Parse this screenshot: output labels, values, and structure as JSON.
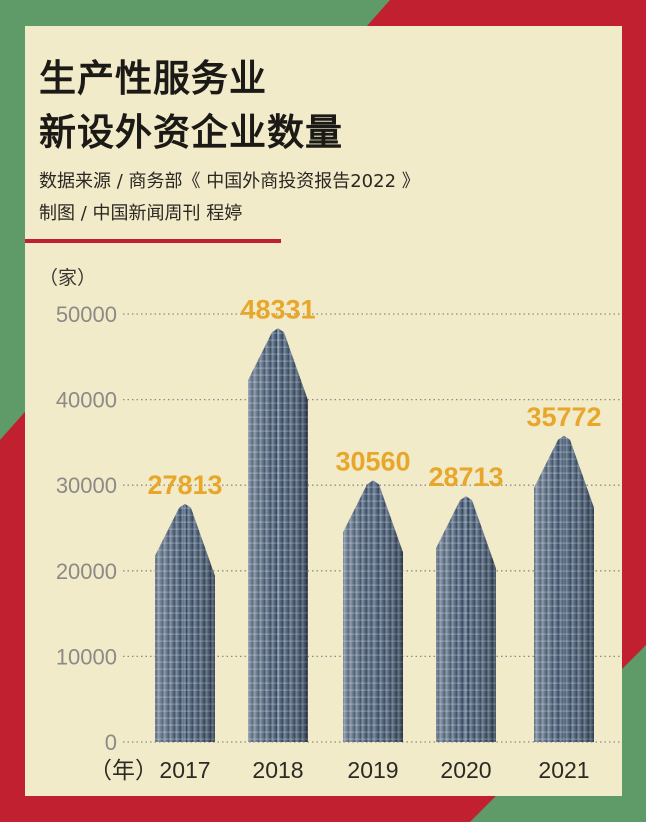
{
  "colors": {
    "green": "#5e9b69",
    "red": "#c0202f",
    "panel": "#f1ebc9",
    "value": "#e8a72a"
  },
  "title_line1": "生产性服务业",
  "title_line2": "新设外资企业数量",
  "source": "数据来源 / 商务部《 中国外商投资报告2022 》",
  "credit": "制图 / 中国新闻周刊 程婷",
  "chart_data": {
    "type": "bar",
    "title": "生产性服务业新设外资企业数量",
    "categories": [
      "2017",
      "2018",
      "2019",
      "2020",
      "2021"
    ],
    "values": [
      27813,
      48331,
      30560,
      28713,
      35772
    ],
    "ylabel": "（家）",
    "xlabel": "（年）",
    "ylim": [
      0,
      50000
    ],
    "yticks": [
      0,
      10000,
      20000,
      30000,
      40000,
      50000
    ],
    "grid": true
  }
}
